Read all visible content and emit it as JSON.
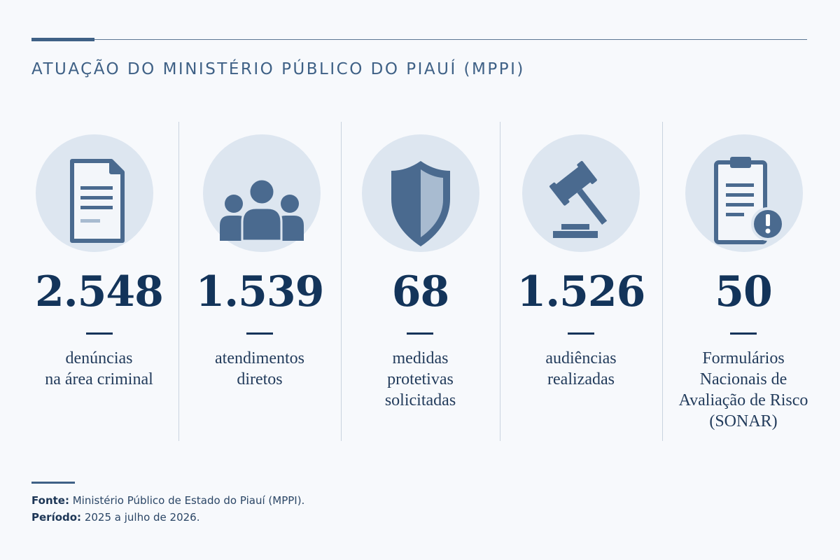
{
  "title": "ATUAÇÃO DO MINISTÉRIO PÚBLICO DO PIAUÍ (MPPI)",
  "colors": {
    "accent": "#3f6186",
    "number": "#13345a",
    "icon": "#4a6a8f",
    "circle": "#dde6f0"
  },
  "stats": [
    {
      "icon": "document-icon",
      "value": "2.548",
      "label": "denúncias\nna área criminal"
    },
    {
      "icon": "people-icon",
      "value": "1.539",
      "label": "atendimentos\ndiretos"
    },
    {
      "icon": "shield-icon",
      "value": "68",
      "label": "medidas\nprotetivas\nsolicitadas"
    },
    {
      "icon": "gavel-icon",
      "value": "1.526",
      "label": "audiências\nrealizadas"
    },
    {
      "icon": "clipboard-alert-icon",
      "value": "50",
      "label": "Formulários\nNacionais de\nAvaliação de Risco\n(SONAR)"
    }
  ],
  "footer": {
    "source_label": "Fonte:",
    "source_text": " Ministério Público de Estado do Piauí (MPPI).",
    "period_label": "Período:",
    "period_text": " 2025 a julho de 2026."
  }
}
